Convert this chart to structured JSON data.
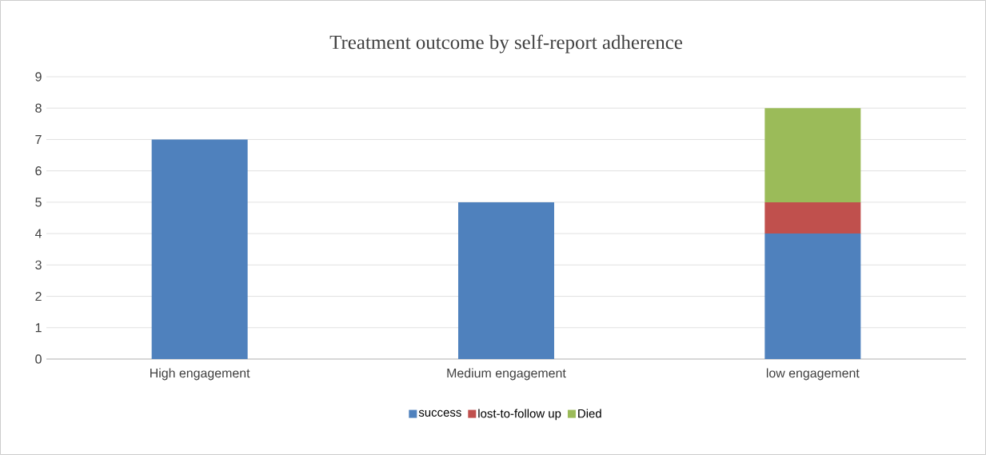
{
  "chart_data": {
    "type": "bar",
    "title": "Treatment outcome by self-report adherence",
    "categories": [
      "High engagement",
      "Medium engagement",
      "low engagement"
    ],
    "series": [
      {
        "name": "success",
        "color": "#4f81bd",
        "values": [
          7,
          5,
          4
        ]
      },
      {
        "name": "lost-to-follow up",
        "color": "#c0504d",
        "values": [
          0,
          0,
          1
        ]
      },
      {
        "name": "Died",
        "color": "#9bbb59",
        "values": [
          0,
          0,
          3
        ]
      }
    ],
    "stacked": true,
    "ylim": [
      0,
      9
    ],
    "yticks": [
      0,
      1,
      2,
      3,
      4,
      5,
      6,
      7,
      8,
      9
    ],
    "grid": "y",
    "legend": "bottom"
  }
}
